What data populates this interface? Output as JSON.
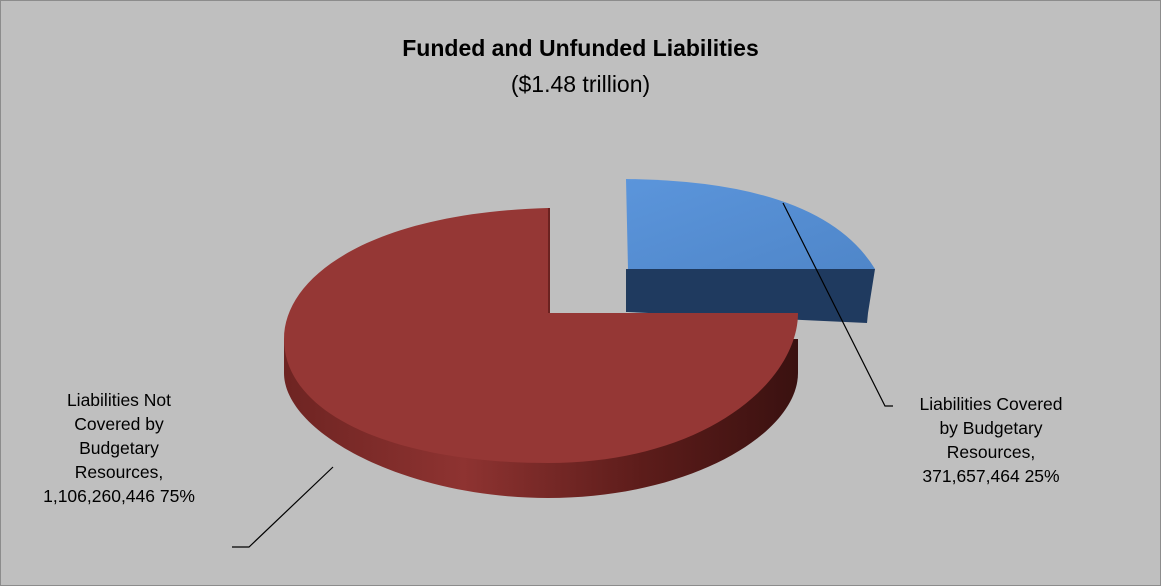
{
  "chart_data": {
    "type": "pie",
    "style": "3d-exploded",
    "title": "Funded and Unfunded Liabilities",
    "subtitle": "($1.48 trillion)",
    "slices": [
      {
        "label": "Liabilities Covered by Budgetary Resources",
        "value": 371657464,
        "percent": 25,
        "display_label": [
          "Liabilities Covered",
          "by Budgetary",
          "Resources,",
          "371,657,464 25%"
        ],
        "color": "#558ed5",
        "side_color": "#1f3a5f"
      },
      {
        "label": "Liabilities Not Covered by Budgetary Resources",
        "value": 1106260446,
        "percent": 75,
        "display_label": [
          "Liabilities Not",
          "Covered by",
          "Budgetary",
          "Resources,",
          "1,106,260,446 75%"
        ],
        "color": "#953735",
        "side_color": "#5a1e1c"
      }
    ],
    "background": "#bfbfbf",
    "legend": "none"
  }
}
